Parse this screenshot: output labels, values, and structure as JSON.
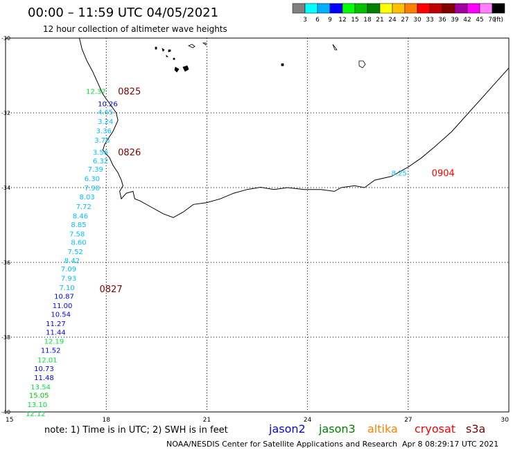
{
  "header": {
    "title": "00:00 – 11:59 UTC 04/05/2021",
    "subtitle": "12 hour collection of altimeter wave heights"
  },
  "colorbar": {
    "colors": [
      "#808080",
      "#00ffff",
      "#00b0ff",
      "#0000ff",
      "#00ff00",
      "#00c000",
      "#008000",
      "#ffff00",
      "#ffc000",
      "#ff8000",
      "#ff0000",
      "#c00000",
      "#800000",
      "#a000a0",
      "#ff00ff",
      "#ff80ff",
      "#000000"
    ],
    "labels": [
      "3",
      "6",
      "9",
      "12",
      "15",
      "18",
      "21",
      "24",
      "27",
      "30",
      "33",
      "36",
      "39",
      "42",
      "45",
      "70"
    ],
    "unit": "(ft)"
  },
  "axes": {
    "lat_labels": [
      "-30",
      "-32",
      "-34",
      "-36",
      "-38",
      "-40"
    ],
    "lon_labels": [
      "15",
      "18",
      "21",
      "24",
      "27",
      "30"
    ]
  },
  "footer": {
    "note": "note:  1) Time is in UTC;  2) SWH is in feet",
    "credit": "NOAA/NESDIS Center for Satellite Applications and Research",
    "timestamp": "Apr  8 08:29:17 UTC 2021"
  },
  "legend": [
    {
      "name": "jason2",
      "color": "#0000ff"
    },
    {
      "name": "jason3",
      "color": "#008000"
    },
    {
      "name": "altika",
      "color": "#ff8000"
    },
    {
      "name": "cryosat",
      "color": "#ff0000"
    },
    {
      "name": "s3a",
      "color": "#800000"
    }
  ],
  "time_labels": [
    {
      "text": "0825",
      "lon": 18.35,
      "lat": -31.42,
      "color": "#800000"
    },
    {
      "text": "0826",
      "lon": 18.35,
      "lat": -33.05,
      "color": "#800000"
    },
    {
      "text": "0827",
      "lon": 17.8,
      "lat": -36.7,
      "color": "#800000"
    },
    {
      "text": "0904",
      "lon": 27.7,
      "lat": -33.6,
      "color": "#ff0000"
    }
  ],
  "swh_values": [
    {
      "text": "12.37",
      "lon": 17.4,
      "lat": -31.42,
      "color": "#00e040"
    },
    {
      "text": "10.26",
      "lon": 17.75,
      "lat": -31.75,
      "color": "#0000ff"
    },
    {
      "text": "4.65",
      "lon": 17.75,
      "lat": -31.97,
      "color": "#00c0ff"
    },
    {
      "text": "3.24",
      "lon": 17.75,
      "lat": -32.22,
      "color": "#00c0ff"
    },
    {
      "text": "3.36",
      "lon": 17.7,
      "lat": -32.47,
      "color": "#00c0ff"
    },
    {
      "text": "3.78",
      "lon": 17.65,
      "lat": -32.72,
      "color": "#00c0ff"
    },
    {
      "text": "3.56",
      "lon": 17.6,
      "lat": -33.05,
      "color": "#00c0ff"
    },
    {
      "text": "6.32",
      "lon": 17.6,
      "lat": -33.28,
      "color": "#00c0ff"
    },
    {
      "text": "7.39",
      "lon": 17.45,
      "lat": -33.5,
      "color": "#00c0ff"
    },
    {
      "text": "6.30",
      "lon": 17.35,
      "lat": -33.75,
      "color": "#00c0ff"
    },
    {
      "text": "7.90",
      "lon": 17.35,
      "lat": -34.0,
      "color": "#00c0ff"
    },
    {
      "text": "8.03",
      "lon": 17.2,
      "lat": -34.24,
      "color": "#00c0ff"
    },
    {
      "text": "7.72",
      "lon": 17.1,
      "lat": -34.5,
      "color": "#00c0ff"
    },
    {
      "text": "8.46",
      "lon": 17.0,
      "lat": -34.75,
      "color": "#00c0ff"
    },
    {
      "text": "8.85",
      "lon": 16.95,
      "lat": -34.98,
      "color": "#00c0ff"
    },
    {
      "text": "7.58",
      "lon": 16.9,
      "lat": -35.23,
      "color": "#00c0ff"
    },
    {
      "text": "8.60",
      "lon": 16.95,
      "lat": -35.45,
      "color": "#00c0ff"
    },
    {
      "text": "7.52",
      "lon": 16.85,
      "lat": -35.7,
      "color": "#00c0ff"
    },
    {
      "text": "8.42",
      "lon": 16.75,
      "lat": -35.94,
      "color": "#00c0ff"
    },
    {
      "text": "7.09",
      "lon": 16.65,
      "lat": -36.17,
      "color": "#00c0ff"
    },
    {
      "text": "7.93",
      "lon": 16.65,
      "lat": -36.42,
      "color": "#00c0ff"
    },
    {
      "text": "7.10",
      "lon": 16.6,
      "lat": -36.67,
      "color": "#00c0ff"
    },
    {
      "text": "10.87",
      "lon": 16.45,
      "lat": -36.9,
      "color": "#0000ff"
    },
    {
      "text": "11.00",
      "lon": 16.4,
      "lat": -37.15,
      "color": "#0000ff"
    },
    {
      "text": "10.54",
      "lon": 16.35,
      "lat": -37.38,
      "color": "#0000ff"
    },
    {
      "text": "11.27",
      "lon": 16.2,
      "lat": -37.63,
      "color": "#0000ff"
    },
    {
      "text": "11.44",
      "lon": 16.2,
      "lat": -37.86,
      "color": "#0000ff"
    },
    {
      "text": "12.19",
      "lon": 16.15,
      "lat": -38.1,
      "color": "#00e040"
    },
    {
      "text": "11.52",
      "lon": 16.05,
      "lat": -38.34,
      "color": "#0000ff"
    },
    {
      "text": "12.01",
      "lon": 15.95,
      "lat": -38.6,
      "color": "#00e040"
    },
    {
      "text": "10.73",
      "lon": 15.85,
      "lat": -38.83,
      "color": "#0000ff"
    },
    {
      "text": "11.48",
      "lon": 15.85,
      "lat": -39.07,
      "color": "#0000ff"
    },
    {
      "text": "13.54",
      "lon": 15.75,
      "lat": -39.32,
      "color": "#00e040"
    },
    {
      "text": "15.05",
      "lon": 15.7,
      "lat": -39.55,
      "color": "#00c000"
    },
    {
      "text": "13.10",
      "lon": 15.65,
      "lat": -39.8,
      "color": "#00e040"
    },
    {
      "text": "12.12",
      "lon": 15.6,
      "lat": -40.04,
      "color": "#00e040"
    },
    {
      "text": "8.25",
      "lon": 26.5,
      "lat": -33.6,
      "color": "#00c0ff"
    }
  ],
  "coastline": [
    [
      17.2,
      -30.0
    ],
    [
      17.28,
      -30.3
    ],
    [
      17.42,
      -30.6
    ],
    [
      17.6,
      -30.9
    ],
    [
      17.75,
      -31.2
    ],
    [
      17.9,
      -31.5
    ],
    [
      18.1,
      -31.75
    ],
    [
      18.3,
      -32.0
    ],
    [
      18.35,
      -32.2
    ],
    [
      18.2,
      -32.5
    ],
    [
      18.05,
      -32.7
    ],
    [
      17.95,
      -32.85
    ],
    [
      17.9,
      -33.0
    ],
    [
      18.0,
      -33.1
    ],
    [
      18.1,
      -33.2
    ],
    [
      18.2,
      -33.4
    ],
    [
      18.35,
      -33.6
    ],
    [
      18.45,
      -33.8
    ],
    [
      18.5,
      -33.95
    ],
    [
      18.4,
      -34.1
    ],
    [
      18.45,
      -34.3
    ],
    [
      18.6,
      -34.15
    ],
    [
      18.8,
      -34.1
    ],
    [
      18.85,
      -34.3
    ],
    [
      19.0,
      -34.35
    ],
    [
      19.3,
      -34.5
    ],
    [
      19.7,
      -34.7
    ],
    [
      20.0,
      -34.8
    ],
    [
      20.3,
      -34.65
    ],
    [
      20.6,
      -34.45
    ],
    [
      21.0,
      -34.4
    ],
    [
      21.4,
      -34.3
    ],
    [
      21.8,
      -34.15
    ],
    [
      22.2,
      -34.05
    ],
    [
      22.6,
      -33.99
    ],
    [
      23.0,
      -34.05
    ],
    [
      23.4,
      -34.0
    ],
    [
      23.9,
      -34.05
    ],
    [
      24.4,
      -34.05
    ],
    [
      24.8,
      -34.1
    ],
    [
      25.0,
      -34.0
    ],
    [
      25.4,
      -33.95
    ],
    [
      25.7,
      -34.0
    ],
    [
      26.0,
      -33.8
    ],
    [
      26.5,
      -33.7
    ],
    [
      27.0,
      -33.45
    ],
    [
      27.4,
      -33.2
    ],
    [
      27.8,
      -32.9
    ],
    [
      28.3,
      -32.5
    ],
    [
      28.8,
      -32.0
    ],
    [
      29.2,
      -31.6
    ],
    [
      29.6,
      -31.2
    ],
    [
      29.9,
      -30.9
    ],
    [
      30.0,
      -30.8
    ]
  ]
}
